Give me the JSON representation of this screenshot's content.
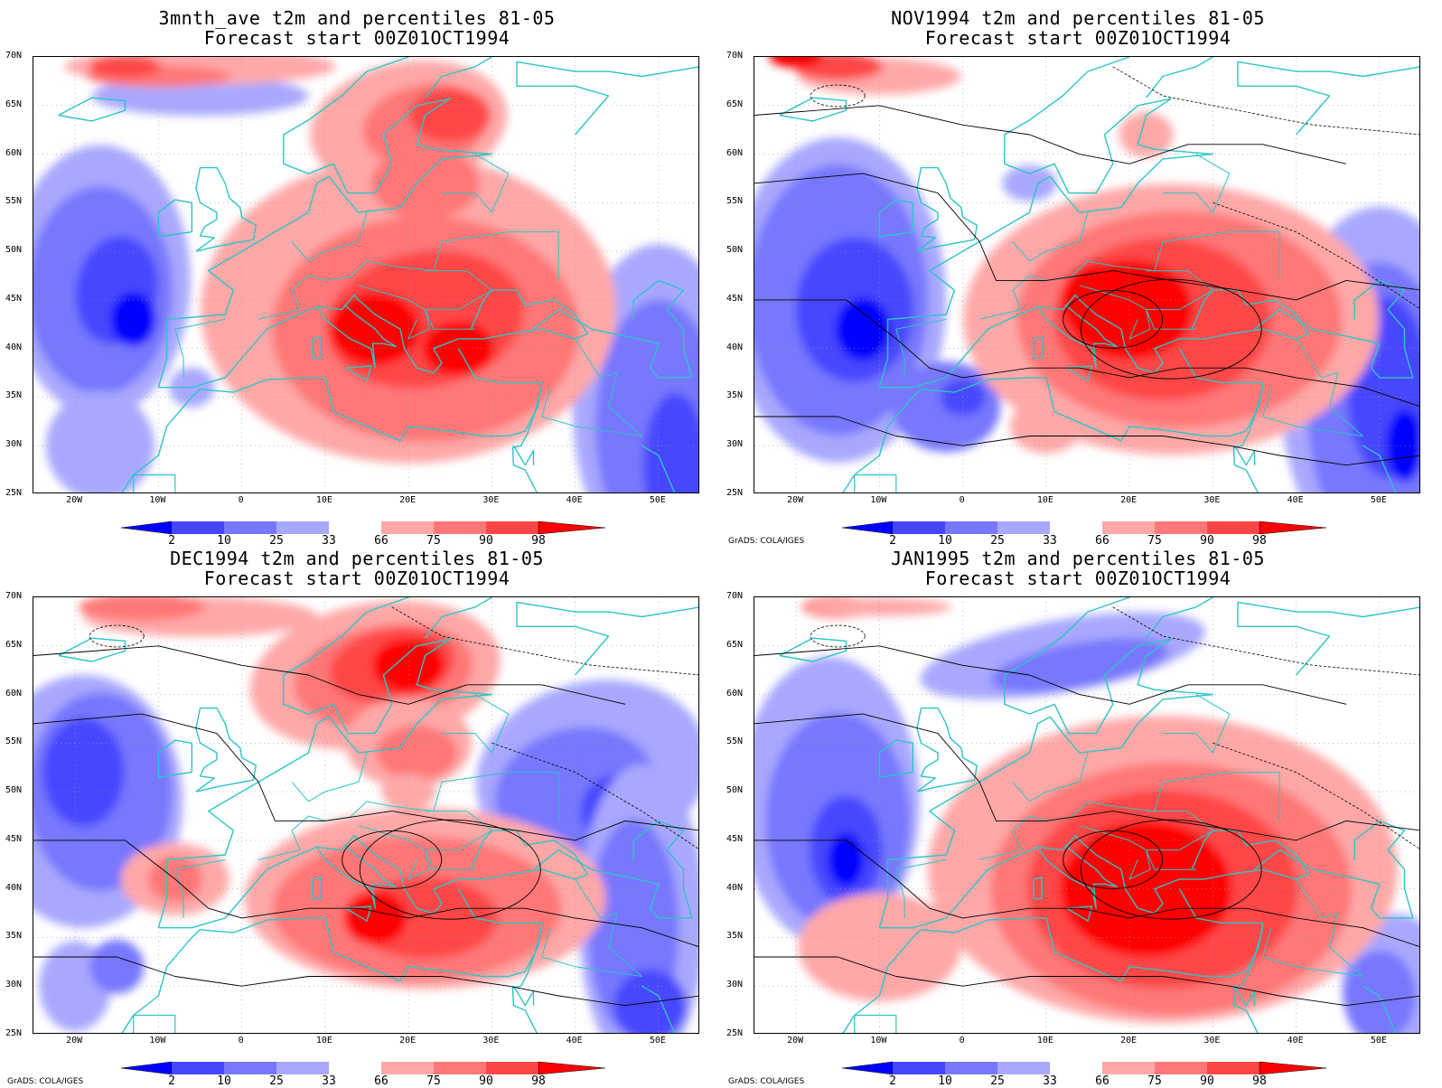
{
  "panels": [
    {
      "title1": "3mnth_ave t2m and percentiles 81-05",
      "title2": "Forecast start 00Z01OCT1994",
      "credit": ""
    },
    {
      "title1": "NOV1994 t2m and percentiles 81-05",
      "title2": "Forecast start 00Z01OCT1994",
      "credit": "GrADS: COLA/IGES"
    },
    {
      "title1": "DEC1994 t2m and percentiles 81-05",
      "title2": "Forecast start 00Z01OCT1994",
      "credit": "GrADS: COLA/IGES"
    },
    {
      "title1": "JAN1995 t2m and percentiles 81-05",
      "title2": "Forecast start 00Z01OCT1994",
      "credit": "GrADS: COLA/IGES"
    }
  ],
  "lat_labels": [
    "70N",
    "65N",
    "60N",
    "55N",
    "50N",
    "45N",
    "40N",
    "35N",
    "30N",
    "25N"
  ],
  "lon_labels": [
    "20W",
    "10W",
    "0",
    "10E",
    "20E",
    "30E",
    "40E",
    "50E"
  ],
  "colorbar": {
    "labels": [
      "2",
      "10",
      "25",
      "33",
      "66",
      "75",
      "90",
      "98"
    ],
    "colors": [
      "#0000ff",
      "#4646ff",
      "#7777ff",
      "#a8a8ff",
      "#ffffff",
      "#ffa8a8",
      "#ff7777",
      "#ff4646",
      "#ff0000"
    ]
  },
  "map": {
    "region": "Europe, North Atlantic and Middle East",
    "lon_range": [
      -25,
      55
    ],
    "lat_range": [
      25,
      70
    ],
    "shading": "t2m percentile category",
    "contours": "t2m (degC)",
    "coastline_color": "#2ec4c4",
    "grid": "dotted"
  }
}
